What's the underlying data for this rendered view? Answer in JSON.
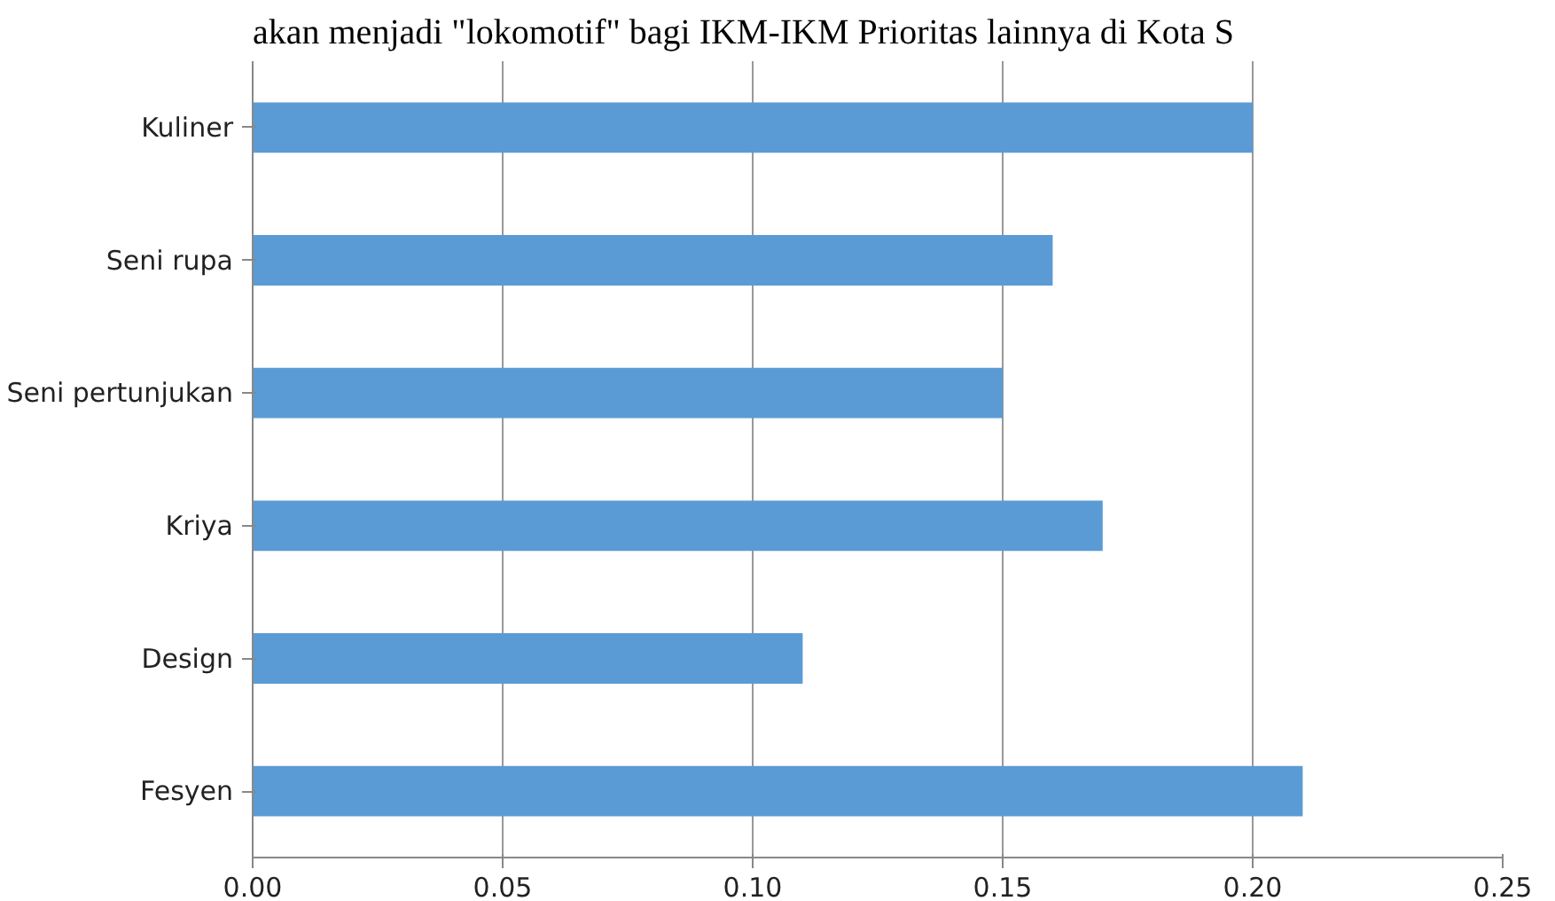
{
  "chart_data": {
    "type": "bar",
    "orientation": "horizontal",
    "annotations": [
      "akan menjadi \"lokomotif\" bagi IKM-IKM Prioritas lainnya di Kota S"
    ],
    "categories": [
      "Kuliner",
      "Seni rupa",
      "Seni pertunjukan",
      "Kriya",
      "Design",
      "Fesyen"
    ],
    "values": [
      0.2,
      0.16,
      0.15,
      0.17,
      0.11,
      0.21
    ],
    "color": "#5b9bd5",
    "xlim": [
      0,
      0.25
    ],
    "xticks": [
      {
        "value": 0,
        "label": "0.00"
      },
      {
        "value": 0.05,
        "label": "0.05"
      },
      {
        "value": 0.1,
        "label": "0.10"
      },
      {
        "value": 0.15,
        "label": "0.15"
      },
      {
        "value": 0.2,
        "label": "0.20"
      },
      {
        "value": 0.25,
        "label": "0.25"
      }
    ],
    "grid": "x"
  }
}
